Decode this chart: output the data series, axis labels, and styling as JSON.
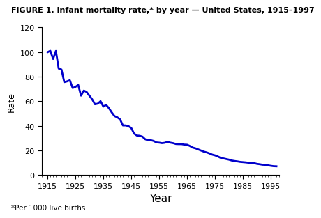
{
  "title": "FIGURE 1. Infant mortality rate,* by year — United States, 1915–1997",
  "xlabel": "Year",
  "ylabel": "Rate",
  "footnote": "*Per 1000 live births.",
  "line_color": "#0000cc",
  "line_width": 2.0,
  "xlim": [
    1913,
    1998
  ],
  "ylim": [
    0,
    120
  ],
  "xticks": [
    1915,
    1925,
    1935,
    1945,
    1955,
    1965,
    1975,
    1985,
    1995
  ],
  "yticks": [
    0,
    20,
    40,
    60,
    80,
    100,
    120
  ],
  "years": [
    1915,
    1916,
    1917,
    1918,
    1919,
    1920,
    1921,
    1922,
    1923,
    1924,
    1925,
    1926,
    1927,
    1928,
    1929,
    1930,
    1931,
    1932,
    1933,
    1934,
    1935,
    1936,
    1937,
    1938,
    1939,
    1940,
    1941,
    1942,
    1943,
    1944,
    1945,
    1946,
    1947,
    1948,
    1949,
    1950,
    1951,
    1952,
    1953,
    1954,
    1955,
    1956,
    1957,
    1958,
    1959,
    1960,
    1961,
    1962,
    1963,
    1964,
    1965,
    1966,
    1967,
    1968,
    1969,
    1970,
    1971,
    1972,
    1973,
    1974,
    1975,
    1976,
    1977,
    1978,
    1979,
    1980,
    1981,
    1982,
    1983,
    1984,
    1985,
    1986,
    1987,
    1988,
    1989,
    1990,
    1991,
    1992,
    1993,
    1994,
    1995,
    1996,
    1997
  ],
  "rates": [
    99.9,
    101.0,
    94.4,
    100.9,
    86.6,
    85.8,
    75.6,
    76.2,
    77.1,
    70.8,
    71.7,
    73.3,
    64.6,
    68.7,
    67.6,
    64.6,
    61.6,
    57.6,
    58.1,
    60.1,
    55.7,
    57.1,
    54.4,
    51.0,
    48.0,
    47.0,
    45.3,
    40.4,
    40.4,
    39.8,
    38.3,
    33.8,
    32.2,
    32.0,
    31.3,
    29.2,
    28.4,
    28.4,
    27.8,
    26.6,
    26.4,
    26.0,
    26.3,
    27.1,
    26.4,
    26.0,
    25.3,
    25.2,
    25.2,
    24.8,
    24.7,
    23.7,
    22.4,
    21.8,
    20.9,
    20.0,
    19.1,
    18.5,
    17.7,
    16.7,
    16.1,
    15.2,
    14.1,
    13.6,
    13.1,
    12.6,
    11.9,
    11.5,
    11.2,
    10.8,
    10.6,
    10.4,
    10.1,
    10.0,
    9.8,
    9.2,
    8.9,
    8.5,
    8.4,
    8.0,
    7.6,
    7.3,
    7.2
  ],
  "title_fontsize": 8.0,
  "ylabel_fontsize": 9,
  "xlabel_fontsize": 11,
  "tick_fontsize": 8,
  "footnote_fontsize": 7.5
}
